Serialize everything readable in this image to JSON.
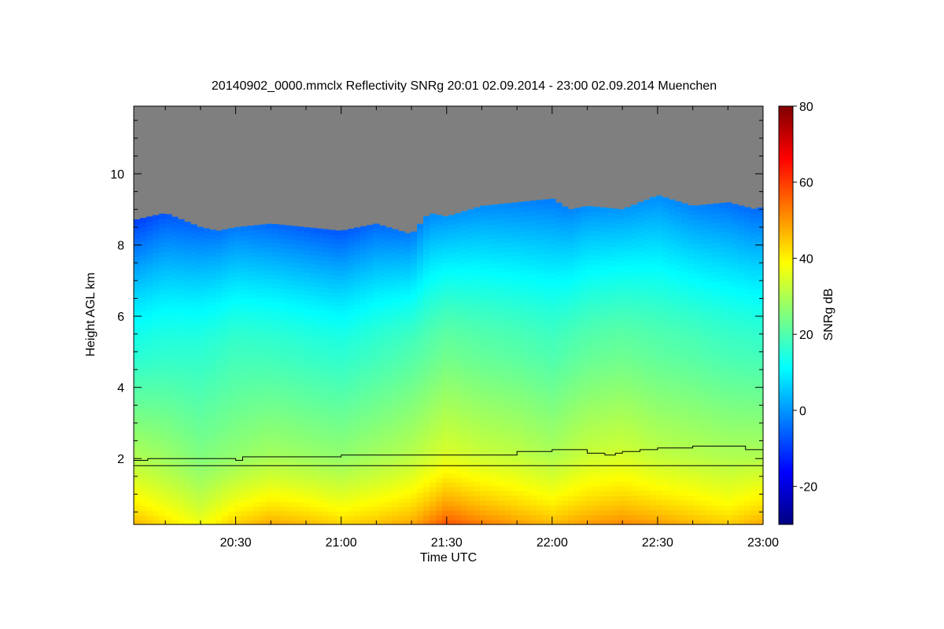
{
  "chart_data": {
    "type": "heatmap",
    "title": "20140902_0000.mmclx Reflectivity SNRg   20:01 02.09.2014 - 23:00 02.09.2014 Muenchen",
    "xlabel": "Time UTC",
    "ylabel": "Height AGL km",
    "colorbar_label": "SNRg dB",
    "x_ticks": [
      "20:30",
      "21:00",
      "21:30",
      "22:00",
      "22:30",
      "23:00"
    ],
    "x_tick_minutes": [
      30,
      60,
      90,
      120,
      150,
      180
    ],
    "x_range_minutes": [
      1,
      180
    ],
    "y_ticks": [
      "2",
      "4",
      "6",
      "8",
      "10"
    ],
    "y_tick_values": [
      2,
      4,
      6,
      8,
      10
    ],
    "y_range_km": [
      0.15,
      11.9
    ],
    "colorbar_ticks": [
      "-20",
      "0",
      "20",
      "40",
      "60",
      "80"
    ],
    "colorbar_tick_values": [
      -20,
      0,
      20,
      40,
      60,
      80
    ],
    "colorbar_range_db": [
      -30,
      80
    ],
    "colormap": [
      "#00007f",
      "#0000ff",
      "#007fff",
      "#00ffff",
      "#7fff7f",
      "#ffff00",
      "#ff7f00",
      "#ff0000",
      "#7f0000"
    ],
    "no_signal_color": "#7f7f7f",
    "echo_top_km": {
      "minutes": [
        1,
        10,
        20,
        25,
        30,
        40,
        50,
        60,
        70,
        80,
        85,
        90,
        100,
        110,
        120,
        125,
        130,
        140,
        150,
        160,
        170,
        178,
        180
      ],
      "values": [
        8.7,
        8.9,
        8.5,
        8.4,
        8.5,
        8.6,
        8.5,
        8.4,
        8.6,
        8.3,
        8.9,
        8.8,
        9.1,
        9.2,
        9.3,
        9.0,
        9.1,
        9.0,
        9.4,
        9.1,
        9.2,
        9.0,
        9.1
      ]
    },
    "reflectivity_columns": {
      "minutes": [
        1,
        10,
        20,
        30,
        40,
        50,
        60,
        70,
        80,
        90,
        100,
        110,
        120,
        130,
        140,
        150,
        160,
        170,
        180
      ],
      "surface_db": [
        50,
        45,
        40,
        48,
        52,
        50,
        47,
        49,
        52,
        62,
        57,
        53,
        50,
        53,
        55,
        53,
        50,
        47,
        52
      ],
      "mid_db": [
        30,
        28,
        25,
        27,
        29,
        28,
        27,
        29,
        31,
        35,
        33,
        32,
        30,
        33,
        34,
        32,
        31,
        30,
        30
      ],
      "upper_db": [
        5,
        8,
        10,
        12,
        10,
        9,
        8,
        10,
        12,
        15,
        14,
        13,
        12,
        14,
        15,
        14,
        13,
        11,
        10
      ]
    },
    "lines": [
      {
        "minutes": [
          1,
          5,
          30,
          32,
          60,
          90,
          110,
          120,
          130,
          135,
          138,
          140,
          145,
          150,
          160,
          170,
          175,
          180
        ],
        "values": [
          1.95,
          2.0,
          1.95,
          2.05,
          2.1,
          2.1,
          2.2,
          2.25,
          2.15,
          2.1,
          2.15,
          2.2,
          2.25,
          2.3,
          2.35,
          2.35,
          2.25,
          2.2
        ]
      },
      {
        "minutes": [
          1,
          180
        ],
        "values": [
          1.8,
          1.8
        ]
      }
    ]
  }
}
